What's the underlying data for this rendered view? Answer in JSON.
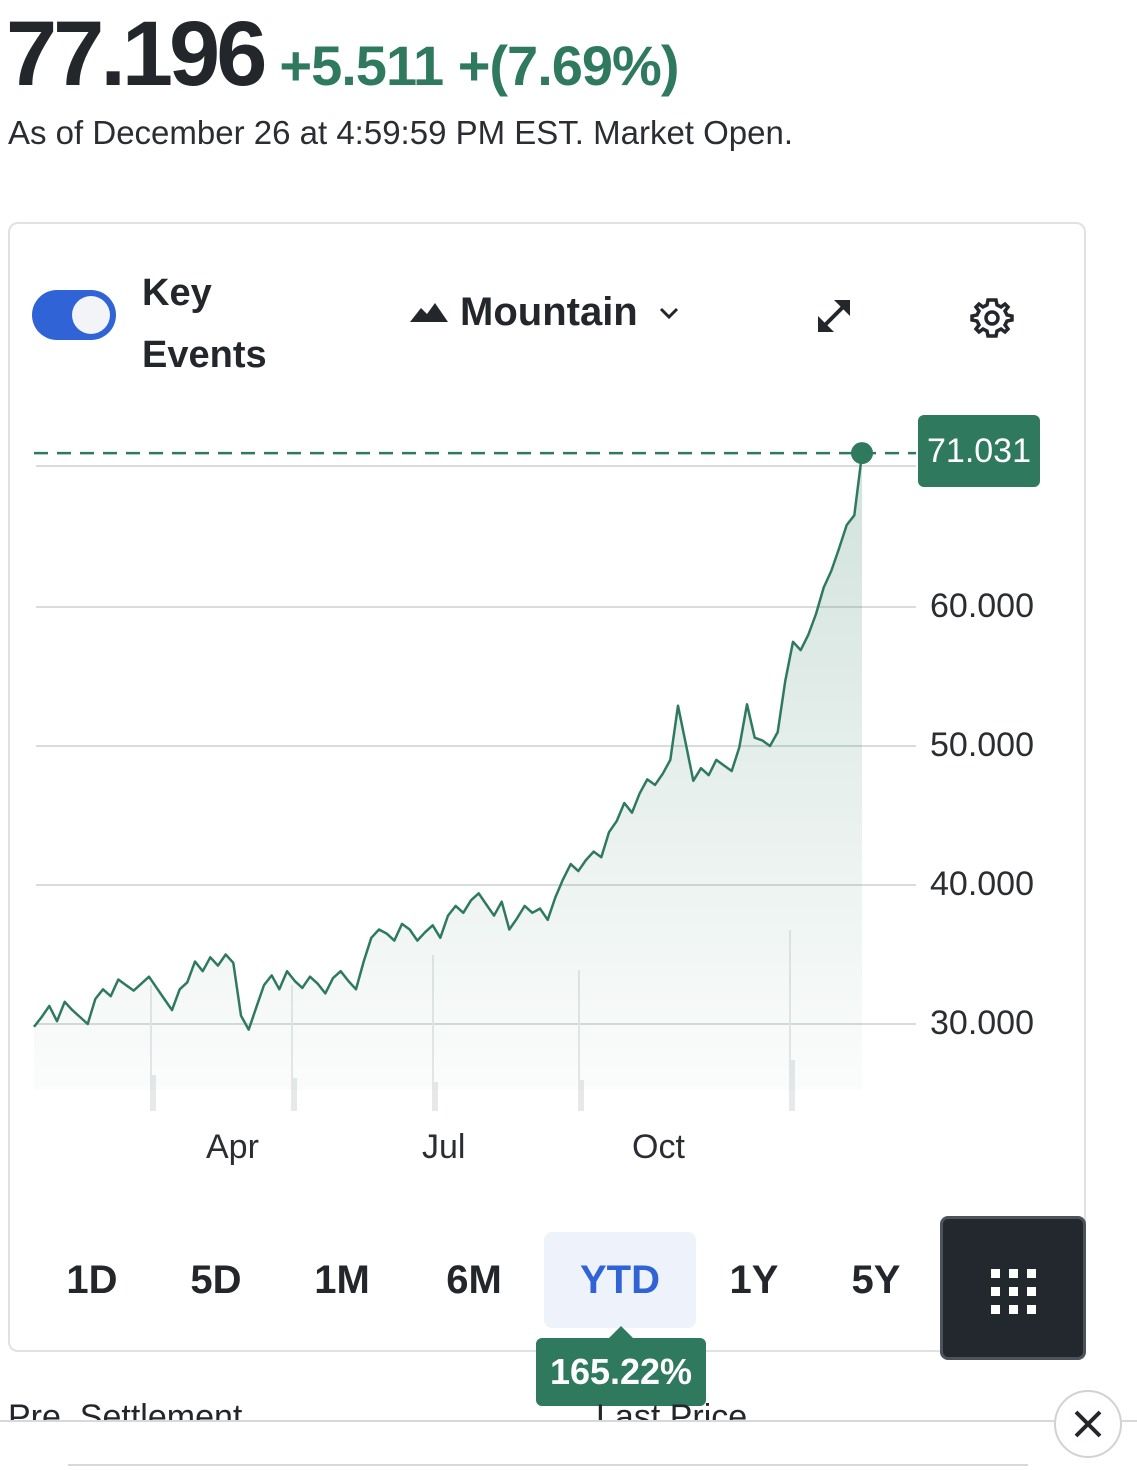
{
  "quote": {
    "price": "77.196",
    "change": "+5.511 +(7.69%)",
    "as_of": "As of December 26 at 4:59:59 PM EST. Market Open."
  },
  "controls": {
    "key_events_label": "Key Events",
    "key_events_on": true,
    "chart_type_label": "Mountain"
  },
  "ranges": [
    "1D",
    "5D",
    "1M",
    "6M",
    "YTD",
    "1Y",
    "5Y"
  ],
  "active_range": "YTD",
  "range_return": "165.22%",
  "footer": {
    "col1": "Pre. Settlement",
    "col2": "Last Price"
  },
  "colors": {
    "up": "#2f7a5f",
    "accent": "#2f63d6"
  },
  "chart_data": {
    "type": "area",
    "x_tick_labels": [
      "Apr",
      "Jul",
      "Oct"
    ],
    "y_tick_labels": [
      "30.000",
      "40.000",
      "50.000",
      "60.000"
    ],
    "ylim": [
      23.5,
      76
    ],
    "last_value_label": "71.031",
    "series": [
      {
        "values": [
          29.8,
          30.5,
          31.3,
          30.2,
          31.6,
          31.0,
          30.5,
          30.0,
          31.8,
          32.5,
          32.0,
          33.2,
          32.8,
          32.4,
          32.9,
          33.4,
          32.6,
          31.8,
          31.0,
          32.5,
          33.0,
          34.5,
          33.8,
          34.8,
          34.2,
          35.0,
          34.4,
          30.6,
          29.6,
          31.2,
          32.8,
          33.5,
          32.5,
          33.8,
          33.1,
          32.6,
          33.4,
          32.9,
          32.2,
          33.3,
          33.8,
          33.1,
          32.5,
          34.5,
          36.2,
          36.8,
          36.5,
          36.0,
          37.2,
          36.8,
          36.0,
          36.6,
          37.1,
          36.2,
          37.8,
          38.5,
          38.0,
          38.9,
          39.4,
          38.6,
          37.8,
          38.8,
          36.8,
          37.6,
          38.5,
          38.0,
          38.3,
          37.5,
          39.1,
          40.4,
          41.5,
          41.0,
          41.8,
          42.4,
          42.0,
          43.8,
          44.6,
          45.9,
          45.2,
          46.6,
          47.6,
          47.2,
          48.0,
          49.0,
          52.9,
          50.2,
          47.5,
          48.4,
          47.9,
          49.0,
          48.6,
          48.2,
          49.9,
          53.0,
          50.6,
          50.4,
          50.0,
          51.0,
          54.7,
          57.5,
          56.9,
          58.0,
          59.5,
          61.4,
          62.6,
          64.2,
          65.9,
          66.6,
          71.0
        ]
      }
    ]
  }
}
